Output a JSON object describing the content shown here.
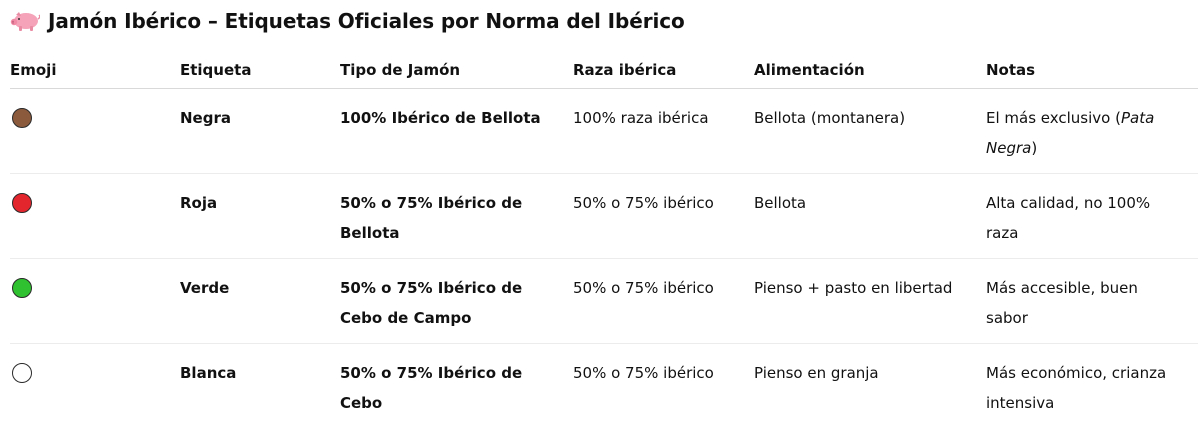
{
  "header": {
    "title": "Jamón Ibérico – Etiquetas Oficiales por Norma del Ibérico",
    "icon": "pig-icon"
  },
  "table": {
    "columns": [
      "Emoji",
      "Etiqueta",
      "Tipo de Jamón",
      "Raza ibérica",
      "Alimentación",
      "Notas"
    ],
    "rows": [
      {
        "dot_color": "#8b5a3c",
        "label": "Negra",
        "type": "100% Ibérico de Bellota",
        "race": "100% raza ibérica",
        "feeding": "Bellota (montanera)",
        "notes_pre": "El más exclusivo (",
        "notes_em": "Pata Negra",
        "notes_post": ")"
      },
      {
        "dot_color": "#e3262e",
        "label": "Roja",
        "type": "50% o 75% Ibérico de Bellota",
        "race": "50% o 75% ibérico",
        "feeding": "Bellota",
        "notes_pre": "Alta calidad, no 100% raza",
        "notes_em": "",
        "notes_post": ""
      },
      {
        "dot_color": "#2fc12f",
        "label": "Verde",
        "type": "50% o 75% Ibérico de Cebo de Campo",
        "race": "50% o 75% ibérico",
        "feeding": "Pienso + pasto en libertad",
        "notes_pre": "Más accesible, buen sabor",
        "notes_em": "",
        "notes_post": ""
      },
      {
        "dot_color": "#ffffff",
        "label": "Blanca",
        "type": "50% o 75% Ibérico de Cebo",
        "race": "50% o 75% ibérico",
        "feeding": "Pienso en granja",
        "notes_pre": "Más económico, crianza intensiva",
        "notes_em": "",
        "notes_post": ""
      }
    ]
  }
}
